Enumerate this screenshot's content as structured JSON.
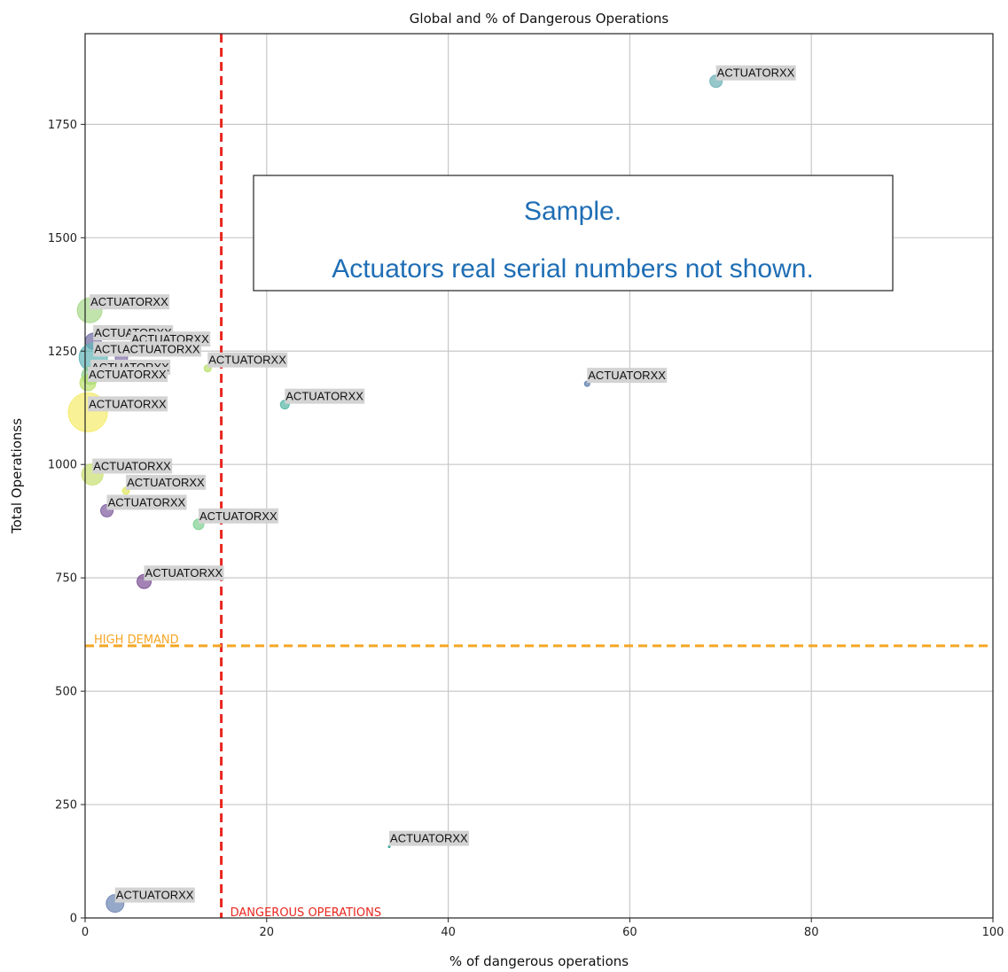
{
  "chart_data": {
    "type": "scatter",
    "title": "Global and % of Dangerous Operations",
    "xlabel": "% of dangerous operations",
    "ylabel": "Total Operationss",
    "xlim": [
      0,
      100
    ],
    "ylim": [
      0,
      1950
    ],
    "xticks": [
      0,
      20,
      40,
      60,
      80,
      100
    ],
    "yticks": [
      0,
      250,
      500,
      750,
      1000,
      1250,
      1500,
      1750
    ],
    "grid": true,
    "reference_lines": [
      {
        "orientation": "vertical",
        "value": 15,
        "label": "DANGEROUS OPERATIONS",
        "color": "#e8261e"
      },
      {
        "orientation": "horizontal",
        "value": 600,
        "label": "HIGH DEMAND",
        "color": "#f5a623"
      }
    ],
    "annotation_box": {
      "lines": [
        "Sample.",
        "Actuators real serial numbers not shown."
      ],
      "color": "#1f6eb5"
    },
    "points": [
      {
        "x": 69.5,
        "y": 1845,
        "size": 7,
        "color": "#6aafb5",
        "label": "ACTUATORXX"
      },
      {
        "x": 0.5,
        "y": 1340,
        "size": 14,
        "color": "#a7d98a",
        "label": "ACTUATORXX"
      },
      {
        "x": 0.9,
        "y": 1272,
        "size": 9,
        "color": "#6d6aa3",
        "label": "ACTUATORXX"
      },
      {
        "x": 5.0,
        "y": 1258,
        "size": 6,
        "color": "#8a7bb8",
        "label": "ACTUATORXX"
      },
      {
        "x": 0.9,
        "y": 1236,
        "size": 16,
        "color": "#5fb4b6",
        "label": "ACTUATORXX"
      },
      {
        "x": 4.0,
        "y": 1236,
        "size": 7,
        "color": "#7c6aa5",
        "label": "ACTUATORXX"
      },
      {
        "x": 13.5,
        "y": 1212,
        "size": 4,
        "color": "#b8e06a",
        "label": "ACTUATORXX"
      },
      {
        "x": 0.6,
        "y": 1196,
        "size": 10,
        "color": "#8fd38c",
        "label": "ACTUATORXX"
      },
      {
        "x": 0.3,
        "y": 1180,
        "size": 9,
        "color": "#b9e06b",
        "label": "ACTUATORXX"
      },
      {
        "x": 55.3,
        "y": 1178,
        "size": 3,
        "color": "#5b7aa8",
        "label": "ACTUATORXX"
      },
      {
        "x": 22.0,
        "y": 1132,
        "size": 5,
        "color": "#52b5a5",
        "label": "ACTUATORXX"
      },
      {
        "x": 0.3,
        "y": 1115,
        "size": 22,
        "color": "#f5eb6a",
        "label": "ACTUATORXX"
      },
      {
        "x": 0.8,
        "y": 978,
        "size": 12,
        "color": "#c8e070",
        "label": "ACTUATORXX"
      },
      {
        "x": 4.5,
        "y": 942,
        "size": 4,
        "color": "#dfe55a",
        "label": "ACTUATORXX"
      },
      {
        "x": 2.4,
        "y": 898,
        "size": 7,
        "color": "#7b5a9c",
        "label": "ACTUATORXX"
      },
      {
        "x": 12.5,
        "y": 868,
        "size": 6,
        "color": "#7ccf8f",
        "label": "ACTUATORXX"
      },
      {
        "x": 6.5,
        "y": 742,
        "size": 8,
        "color": "#7b4f93",
        "label": "ACTUATORXX"
      },
      {
        "x": 33.5,
        "y": 157,
        "size": 1,
        "color": "#2a9a8c",
        "label": "ACTUATORXX"
      },
      {
        "x": 3.3,
        "y": 32,
        "size": 10,
        "color": "#6a83b0",
        "label": "ACTUATORXX"
      }
    ]
  }
}
